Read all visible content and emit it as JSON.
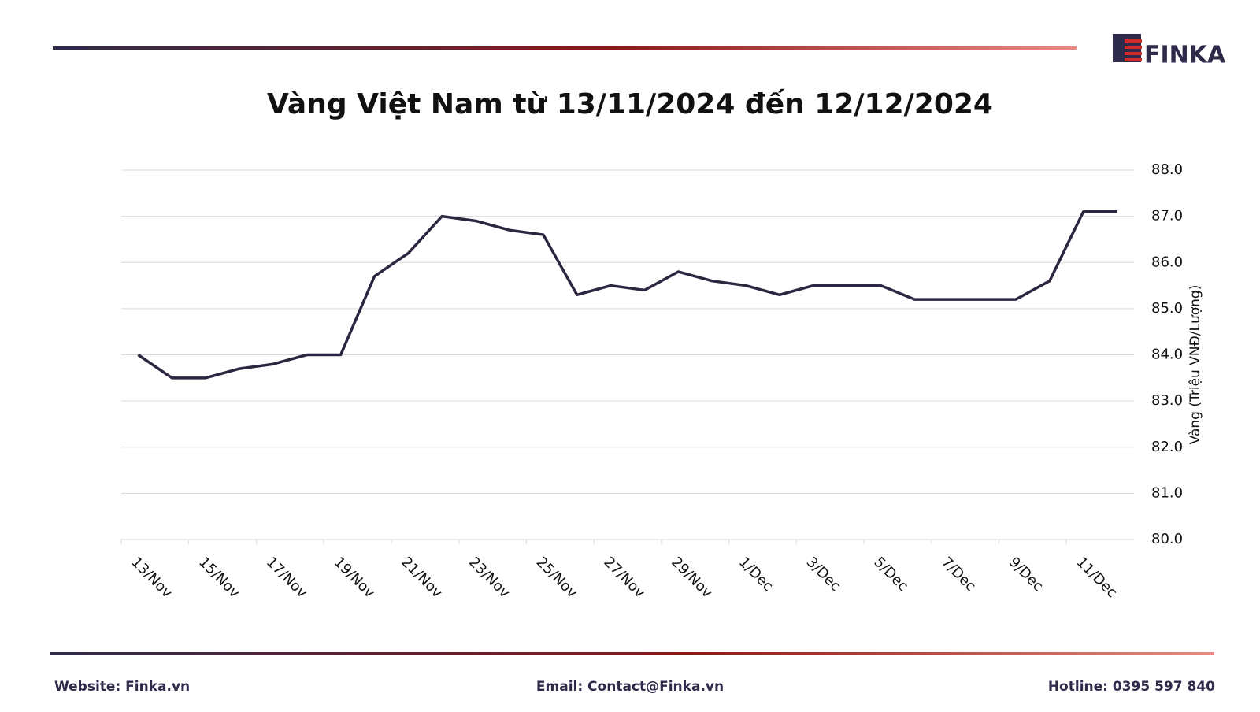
{
  "brand": "FINKA",
  "footer": {
    "website": "Website: Finka.vn",
    "email": "Email: Contact@Finka.vn",
    "hotline": "Hotline: 0395 597 840"
  },
  "chart_data": {
    "type": "line",
    "title": "Vàng Việt Nam từ 13/11/2024 đến 12/12/2024",
    "y_label": "Vàng (Triệu VNĐ/Lượng)",
    "categories": [
      "13/Nov",
      null,
      "15/Nov",
      null,
      "17/Nov",
      null,
      "19/Nov",
      null,
      "21/Nov",
      null,
      "23/Nov",
      null,
      "25/Nov",
      null,
      "27/Nov",
      null,
      "29/Nov",
      null,
      "1/Dec",
      null,
      "3/Dec",
      null,
      "5/Dec",
      null,
      "7/Dec",
      null,
      "9/Dec",
      null,
      "11/Dec",
      null
    ],
    "series": [
      {
        "name": "Vàng",
        "color": "#2e2640",
        "values": [
          84.0,
          83.5,
          83.5,
          83.7,
          83.8,
          84.0,
          84.0,
          85.7,
          86.2,
          87.0,
          86.9,
          86.7,
          86.6,
          85.3,
          85.5,
          85.4,
          85.8,
          85.6,
          85.5,
          85.3,
          85.5,
          85.5,
          85.5,
          85.2,
          85.2,
          85.2,
          85.2,
          85.6,
          87.1,
          87.1
        ]
      }
    ],
    "ylim": [
      80,
      88
    ],
    "yticks": [
      {
        "value": 80,
        "label": "80.0"
      },
      {
        "value": 81,
        "label": "81.0"
      },
      {
        "value": 82,
        "label": "82.0"
      },
      {
        "value": 83,
        "label": "83.0"
      },
      {
        "value": 84,
        "label": "84.0"
      },
      {
        "value": 85,
        "label": "85.0"
      },
      {
        "value": 86,
        "label": "86.0"
      },
      {
        "value": 87,
        "label": "87.0"
      },
      {
        "value": 88,
        "label": "88.0"
      }
    ],
    "y_axis_side": "right",
    "grid": true
  }
}
